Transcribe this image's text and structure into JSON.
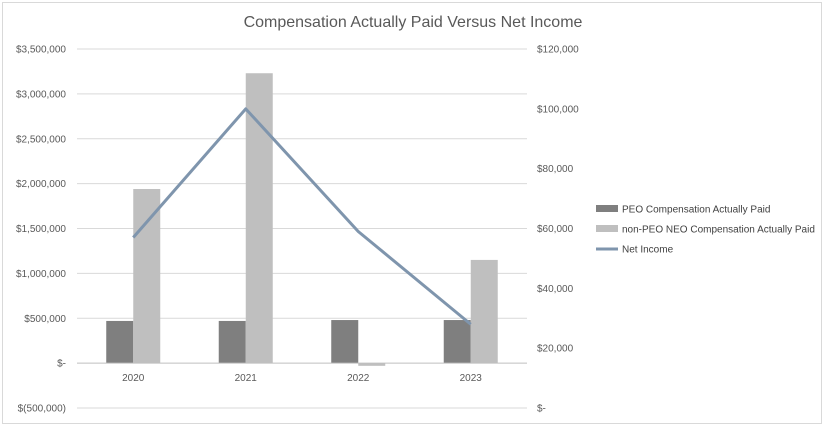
{
  "chart_data": {
    "type": "bar",
    "title": "Compensation Actually Paid Versus Net Income",
    "categories": [
      "2020",
      "2021",
      "2022",
      "2023"
    ],
    "y_left": {
      "min": -500000,
      "max": 3500000,
      "step": 500000,
      "tick_labels": [
        "$(500,000)",
        "$-",
        "$500,000",
        "$1,000,000",
        "$1,500,000",
        "$2,000,000",
        "$2,500,000",
        "$3,000,000",
        "$3,500,000"
      ]
    },
    "y_right": {
      "min": 0,
      "max": 120000,
      "step": 20000,
      "tick_labels": [
        "$-",
        "$20,000",
        "$40,000",
        "$60,000",
        "$80,000",
        "$100,000",
        "$120,000"
      ]
    },
    "series": [
      {
        "name": "PEO Compensation Actually Paid",
        "kind": "bar",
        "axis": "left",
        "color": "#7f7f7f",
        "values": [
          470000,
          470000,
          480000,
          480000
        ]
      },
      {
        "name": "non-PEO NEO Compensation Actually Paid",
        "kind": "bar",
        "axis": "left",
        "color": "#bfbfbf",
        "values": [
          1940000,
          3230000,
          -30000,
          1150000
        ]
      },
      {
        "name": "Net Income",
        "kind": "line",
        "axis": "right",
        "color": "#7f95ad",
        "values": [
          57000,
          100000,
          59000,
          28000
        ]
      }
    ],
    "grid": true,
    "legend_position": "right"
  }
}
